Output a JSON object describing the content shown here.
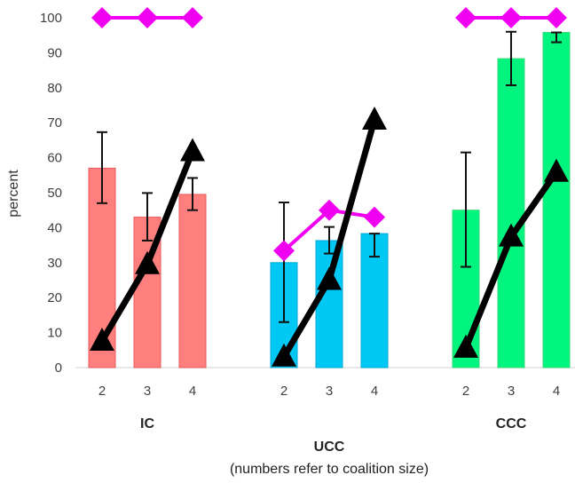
{
  "chart_data": {
    "type": "bar",
    "ylabel": "percent",
    "ylim": [
      0,
      100
    ],
    "yticks": [
      0,
      10,
      20,
      30,
      40,
      50,
      60,
      70,
      80,
      90,
      100
    ],
    "grid": false,
    "xlabel_line1": "UCC",
    "xlabel_line2": "(numbers refer to coalition size)",
    "groups": [
      {
        "name": "IC",
        "bar_color": "#ff7f7f",
        "bar_stroke": "#e85b5b",
        "categories": [
          "2",
          "3",
          "4"
        ],
        "bars": [
          57.0,
          43.0,
          49.5
        ],
        "err_low": [
          47.0,
          36.3,
          45.0
        ],
        "err_high": [
          67.3,
          49.9,
          54.2
        ],
        "diamonds": [
          100,
          100,
          100
        ],
        "triangles": [
          7.6,
          29.5,
          61.8
        ]
      },
      {
        "name": "UCC",
        "bar_color": "#00c8f4",
        "bar_stroke": "#00a7d6",
        "categories": [
          "2",
          "3",
          "4"
        ],
        "bars": [
          30.0,
          36.3,
          38.3
        ],
        "err_low": [
          13.0,
          32.6,
          31.7
        ],
        "err_high": [
          47.2,
          40.2,
          38.3
        ],
        "diamonds": [
          33.4,
          45.0,
          43.0
        ],
        "triangles": [
          3.1,
          25.0,
          70.8
        ]
      },
      {
        "name": "CCC",
        "bar_color": "#00f57f",
        "bar_stroke": "#33d977",
        "categories": [
          "2",
          "3",
          "4"
        ],
        "bars": [
          45.0,
          88.3,
          95.8
        ],
        "err_low": [
          28.8,
          80.7,
          93.0
        ],
        "err_high": [
          61.5,
          96.0,
          95.8
        ],
        "diamonds": [
          100,
          100,
          100
        ],
        "triangles": [
          5.6,
          37.4,
          55.9
        ]
      }
    ],
    "diamond_color": "#f000f0",
    "triangle_color": "#000000"
  }
}
